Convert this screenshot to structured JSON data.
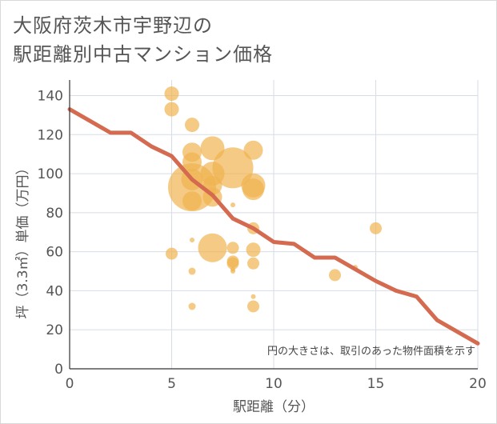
{
  "title_lines": [
    "大阪府茨木市宇野辺の",
    "駅距離別中古マンション価格"
  ],
  "chart_data": {
    "type": "scatter",
    "title": "大阪府茨木市宇野辺の駅距離別中古マンション価格",
    "xlabel": "駅距離（分）",
    "ylabel": "坪（3.3㎡）単価（万円）",
    "xlim": [
      0,
      20
    ],
    "ylim": [
      0,
      148
    ],
    "xticks": [
      0,
      5,
      10,
      15,
      20
    ],
    "yticks": [
      0,
      20,
      40,
      60,
      80,
      100,
      120,
      140
    ],
    "grid": true,
    "note": "円の大きさは、取引のあった物件面積を示す",
    "bubble_color": "#f0b450",
    "line_color": "#d46a4f",
    "bubbles": [
      {
        "x": 5,
        "y": 141,
        "size": 3
      },
      {
        "x": 5,
        "y": 133,
        "size": 3
      },
      {
        "x": 5,
        "y": 59,
        "size": 2.5
      },
      {
        "x": 6,
        "y": 125,
        "size": 3
      },
      {
        "x": 6,
        "y": 111,
        "size": 4
      },
      {
        "x": 6,
        "y": 106,
        "size": 4
      },
      {
        "x": 6,
        "y": 97,
        "size": 4.5
      },
      {
        "x": 6,
        "y": 93,
        "size": 10
      },
      {
        "x": 6,
        "y": 86,
        "size": 4
      },
      {
        "x": 6,
        "y": 66,
        "size": 1
      },
      {
        "x": 6,
        "y": 50,
        "size": 1.5
      },
      {
        "x": 6,
        "y": 32,
        "size": 1.5
      },
      {
        "x": 7,
        "y": 113,
        "size": 5
      },
      {
        "x": 7,
        "y": 100,
        "size": 5
      },
      {
        "x": 7,
        "y": 94,
        "size": 4
      },
      {
        "x": 7,
        "y": 88,
        "size": 4
      },
      {
        "x": 7,
        "y": 62,
        "size": 6
      },
      {
        "x": 8,
        "y": 103,
        "size": 8.5
      },
      {
        "x": 8,
        "y": 84,
        "size": 1
      },
      {
        "x": 8,
        "y": 62,
        "size": 2.5
      },
      {
        "x": 8,
        "y": 55,
        "size": 2.5
      },
      {
        "x": 8,
        "y": 54,
        "size": 2.5
      },
      {
        "x": 8,
        "y": 51,
        "size": 1
      },
      {
        "x": 8,
        "y": 50,
        "size": 1
      },
      {
        "x": 9,
        "y": 112,
        "size": 4
      },
      {
        "x": 9,
        "y": 94,
        "size": 5
      },
      {
        "x": 9,
        "y": 92,
        "size": 4.5
      },
      {
        "x": 9,
        "y": 72,
        "size": 2.5
      },
      {
        "x": 9,
        "y": 61,
        "size": 3
      },
      {
        "x": 9,
        "y": 54,
        "size": 2.5
      },
      {
        "x": 9,
        "y": 37,
        "size": 1
      },
      {
        "x": 9,
        "y": 32,
        "size": 2.5
      },
      {
        "x": 13,
        "y": 48,
        "size": 2.5
      },
      {
        "x": 14,
        "y": 52,
        "size": 1
      },
      {
        "x": 15,
        "y": 72,
        "size": 2.5
      }
    ],
    "trend": {
      "x": [
        0,
        1,
        2,
        3,
        4,
        5,
        6,
        7,
        8,
        9,
        10,
        11,
        12,
        13,
        14,
        15,
        16,
        17,
        18,
        19,
        20
      ],
      "y": [
        133,
        127,
        121,
        121,
        114,
        109,
        97,
        89,
        77,
        72,
        65,
        64,
        57,
        57,
        51,
        45,
        40,
        37,
        25,
        19,
        13
      ]
    }
  }
}
